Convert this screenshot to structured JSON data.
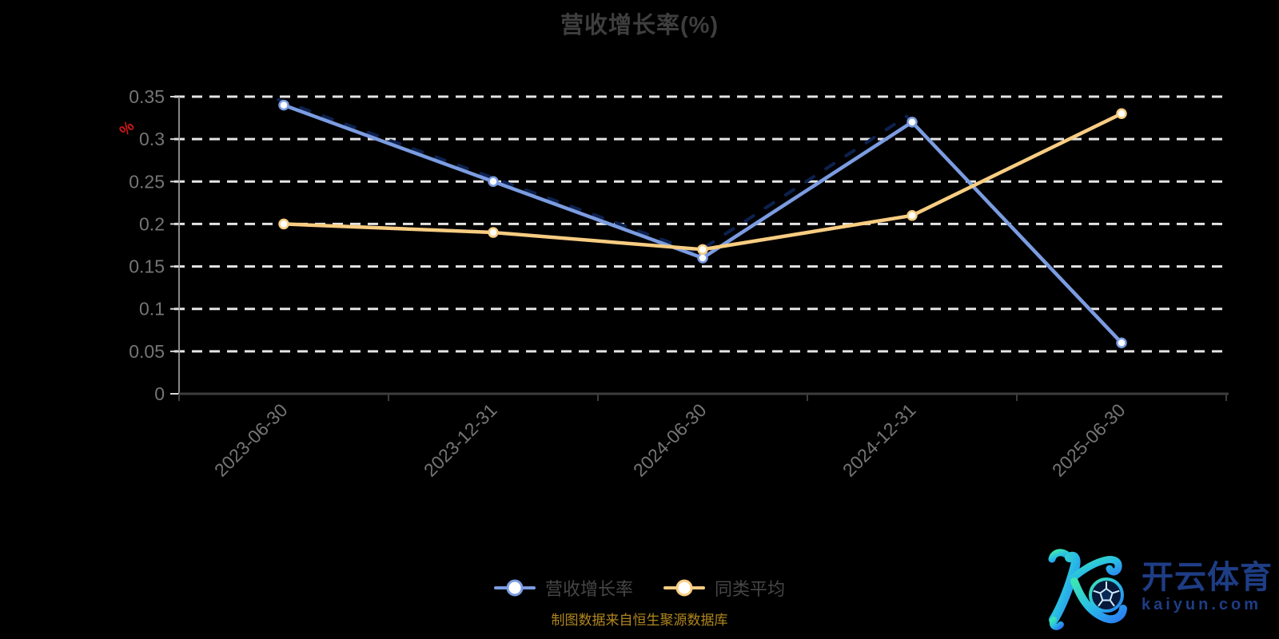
{
  "chart_data": {
    "type": "line",
    "title": "营收增长率(%)",
    "categories": [
      "2023-06-30",
      "2023-12-31",
      "2024-06-30",
      "2024-12-31",
      "2025-06-30"
    ],
    "series": [
      {
        "name": "营收增长率",
        "color": "#7b9ce1",
        "marker_fill": "#ffffff",
        "values": [
          0.34,
          0.25,
          0.16,
          0.32,
          0.06
        ]
      },
      {
        "name": "同类平均",
        "color": "#f8cd82",
        "marker_fill": "#ffffff",
        "values": [
          0.2,
          0.19,
          0.17,
          0.21,
          0.33
        ]
      }
    ],
    "y_axis": {
      "name": "%",
      "name_color": "#d01818",
      "range": [
        0,
        0.35
      ],
      "ticks": [
        0,
        0.05,
        0.1,
        0.15,
        0.2,
        0.25,
        0.3,
        0.35
      ],
      "tick_labels": [
        "0",
        "0.05",
        "0.1",
        "0.15",
        "0.2",
        "0.25",
        "0.3",
        "0.35"
      ]
    },
    "grid": "horizontal dashed white lines on black background",
    "legend_position": "bottom-center",
    "source_note": "制图数据来自恒生聚源数据库"
  },
  "colors": {
    "background": "#000000",
    "title_text": "#3e3e3e",
    "axis_label": "#757575",
    "x_axis_line": "#3d3d3d",
    "y_axis_line": "#878787",
    "gridline": "#e4e4e4",
    "legend_text": "#464646",
    "source_text": "#b0871e",
    "logo_navy": "#1e3d85"
  },
  "logo": {
    "brand": "开云体育",
    "domain": "kaiyun.com",
    "monogram": "K with football"
  }
}
